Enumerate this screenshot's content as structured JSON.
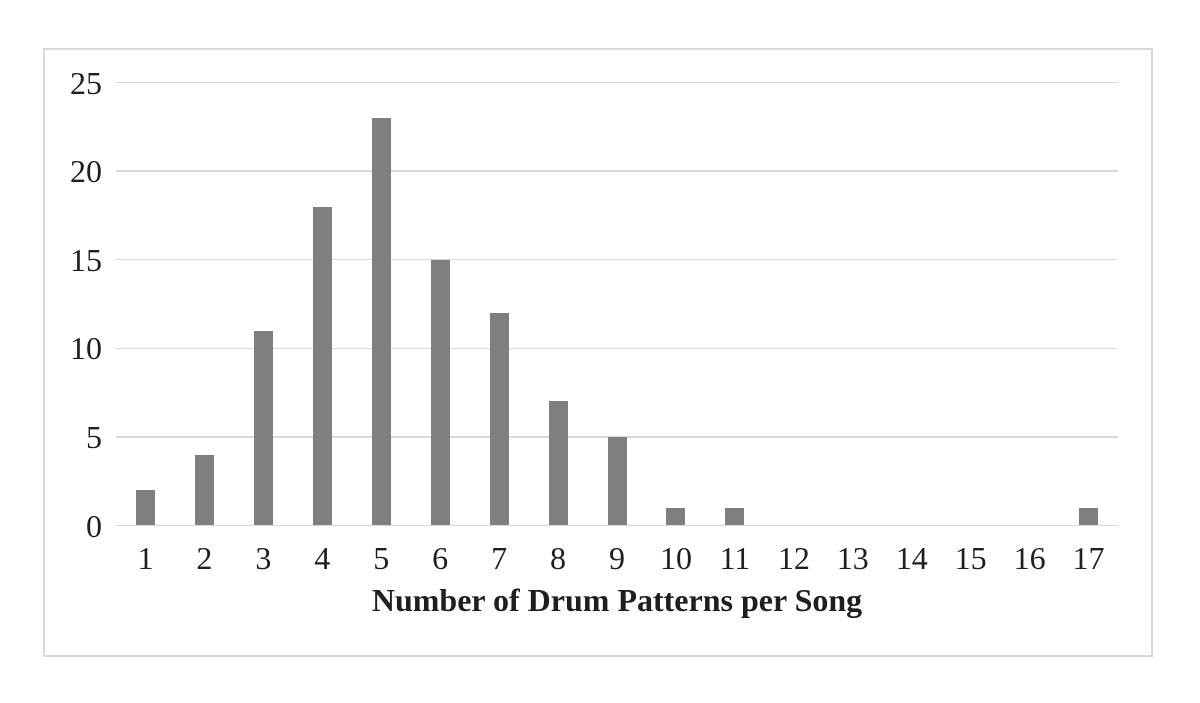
{
  "chart": {
    "bar_color": "#7f7f7f",
    "gridline_color": "#d9d9d9",
    "frame_border_color": "#d9d9d9",
    "text_color": "#1f1f1f",
    "background_color": "#ffffff"
  },
  "chart_data": {
    "type": "bar",
    "categories": [
      "1",
      "2",
      "3",
      "4",
      "5",
      "6",
      "7",
      "8",
      "9",
      "10",
      "11",
      "12",
      "13",
      "14",
      "15",
      "16",
      "17"
    ],
    "values": [
      2,
      4,
      11,
      18,
      23,
      15,
      12,
      7,
      5,
      1,
      1,
      0,
      0,
      0,
      0,
      0,
      1
    ],
    "title": "",
    "xlabel": "Number of Drum Patterns per Song",
    "ylabel": "",
    "ylim": [
      0,
      25
    ],
    "yticks": [
      0,
      5,
      10,
      15,
      20,
      25
    ],
    "grid": true,
    "legend": false,
    "orientation": "vertical"
  }
}
